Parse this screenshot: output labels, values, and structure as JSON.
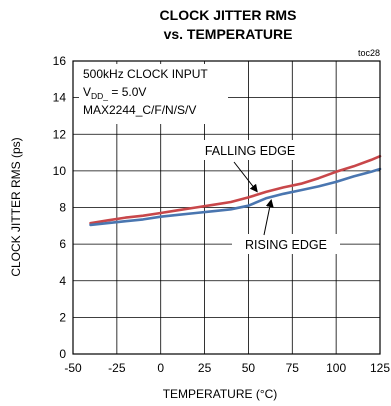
{
  "chart_data": {
    "type": "line",
    "title_line1": "CLOCK JITTER RMS",
    "title_line2": "vs. TEMPERATURE",
    "toc_id": "toc28",
    "xlabel": "TEMPERATURE (°C)",
    "ylabel": "CLOCK JITTER RMS (ps)",
    "xlim": [
      -50,
      125
    ],
    "ylim": [
      0,
      16
    ],
    "xticks": [
      -50,
      -25,
      0,
      25,
      50,
      75,
      100,
      125
    ],
    "yticks": [
      0,
      2,
      4,
      6,
      8,
      10,
      12,
      14,
      16
    ],
    "xtick_labels": [
      "-50",
      "-25",
      "0",
      "25",
      "50",
      "75",
      "100",
      "125"
    ],
    "ytick_labels": [
      "0",
      "2",
      "4",
      "6",
      "8",
      "10",
      "12",
      "14",
      "16"
    ],
    "grid": true,
    "conditions": {
      "line1": "500kHz CLOCK INPUT",
      "line2_prefix": "V",
      "line2_sub": "DD_",
      "line2_suffix": " = 5.0V",
      "line3": "MAX2244_C/F/N/S/V"
    },
    "series": [
      {
        "name": "FALLING EDGE",
        "color": "#c8474a",
        "x": [
          -40,
          -30,
          -20,
          -10,
          0,
          10,
          20,
          30,
          40,
          50,
          60,
          70,
          80,
          90,
          100,
          110,
          120,
          125
        ],
        "y": [
          7.15,
          7.3,
          7.45,
          7.55,
          7.7,
          7.85,
          8.0,
          8.15,
          8.3,
          8.55,
          8.85,
          9.1,
          9.3,
          9.6,
          9.95,
          10.25,
          10.6,
          10.8
        ]
      },
      {
        "name": "RISING EDGE",
        "color": "#4a76b0",
        "x": [
          -40,
          -30,
          -20,
          -10,
          0,
          10,
          20,
          30,
          40,
          50,
          60,
          70,
          80,
          90,
          100,
          110,
          120,
          125
        ],
        "y": [
          7.05,
          7.15,
          7.25,
          7.35,
          7.5,
          7.6,
          7.7,
          7.8,
          7.9,
          8.1,
          8.5,
          8.75,
          8.95,
          9.15,
          9.4,
          9.7,
          9.95,
          10.1
        ]
      }
    ],
    "annotations": [
      {
        "text": "FALLING EDGE",
        "points_to": "FALLING EDGE",
        "at_x": 55
      },
      {
        "text": "RISING EDGE",
        "points_to": "RISING EDGE",
        "at_x": 63
      }
    ]
  }
}
